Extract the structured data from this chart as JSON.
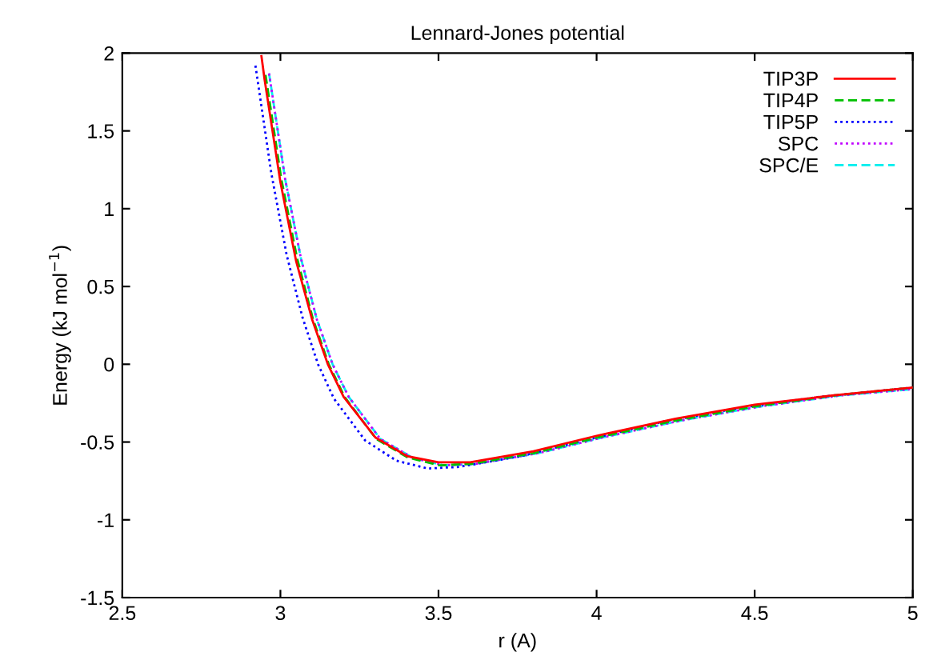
{
  "chart_data": {
    "type": "line",
    "title": "Lennard-Jones potential",
    "xlabel": "r (A)",
    "ylabel": "Energy (kJ mol$^{−1}$)",
    "xlim": [
      2.5,
      5
    ],
    "ylim": [
      -1.5,
      2
    ],
    "xticks": [
      2.5,
      3,
      3.5,
      4,
      4.5,
      5
    ],
    "yticks": [
      -1.5,
      -1,
      -0.5,
      0,
      0.5,
      1,
      1.5,
      2
    ],
    "grid": false,
    "legend": "top right",
    "marker": "none",
    "series": [
      {
        "name": "TIP3P",
        "color": "#ff0000",
        "line_style": "solid",
        "x": [
          2.94,
          2.95,
          3.0,
          3.05,
          3.1,
          3.15,
          3.2,
          3.3,
          3.4,
          3.5,
          3.6,
          3.8,
          4.0,
          4.25,
          4.5,
          4.75,
          5.0
        ],
        "values": [
          1.98,
          1.83,
          1.17,
          0.66,
          0.29,
          0.0,
          -0.21,
          -0.47,
          -0.59,
          -0.63,
          -0.63,
          -0.56,
          -0.46,
          -0.35,
          -0.26,
          -0.2,
          -0.15
        ]
      },
      {
        "name": "TIP4P",
        "color": "#00c000",
        "line_style": "dashed",
        "x": [
          2.953,
          3.003,
          3.053,
          3.103,
          3.153,
          3.203,
          3.303,
          3.403,
          3.503,
          3.604,
          3.804,
          4.004,
          4.254,
          4.504,
          4.755,
          5.0
        ],
        "values": [
          1.86,
          1.19,
          0.68,
          0.29,
          0.0,
          -0.21,
          -0.48,
          -0.6,
          -0.65,
          -0.64,
          -0.57,
          -0.47,
          -0.36,
          -0.27,
          -0.2,
          -0.15
        ]
      },
      {
        "name": "TIP5P",
        "color": "#0000ff",
        "line_style": "dotted",
        "x": [
          2.921,
          2.971,
          3.02,
          3.07,
          3.119,
          3.169,
          3.268,
          3.367,
          3.466,
          3.565,
          3.763,
          3.961,
          4.209,
          4.456,
          4.704,
          5.0
        ],
        "values": [
          1.92,
          1.23,
          0.7,
          0.3,
          0.0,
          -0.22,
          -0.49,
          -0.62,
          -0.67,
          -0.66,
          -0.59,
          -0.49,
          -0.37,
          -0.28,
          -0.21,
          -0.15
        ]
      },
      {
        "name": "SPC",
        "color": "#c000ff",
        "line_style": "dotted",
        "x": [
          2.964,
          3.015,
          3.065,
          3.115,
          3.165,
          3.216,
          3.316,
          3.417,
          3.517,
          3.618,
          3.819,
          4.02,
          4.271,
          4.522,
          4.773,
          5.0
        ],
        "values": [
          1.87,
          1.19,
          0.68,
          0.29,
          0.0,
          -0.21,
          -0.48,
          -0.6,
          -0.65,
          -0.64,
          -0.57,
          -0.47,
          -0.36,
          -0.27,
          -0.2,
          -0.16
        ]
      },
      {
        "name": "SPC/E",
        "color": "#00eeee",
        "line_style": "dashed",
        "x": [
          2.964,
          3.015,
          3.065,
          3.115,
          3.165,
          3.216,
          3.316,
          3.417,
          3.517,
          3.618,
          3.819,
          4.02,
          4.271,
          4.522,
          4.773,
          5.0
        ],
        "values": [
          1.87,
          1.19,
          0.68,
          0.29,
          0.0,
          -0.21,
          -0.48,
          -0.6,
          -0.65,
          -0.64,
          -0.57,
          -0.47,
          -0.36,
          -0.27,
          -0.2,
          -0.16
        ]
      }
    ]
  }
}
